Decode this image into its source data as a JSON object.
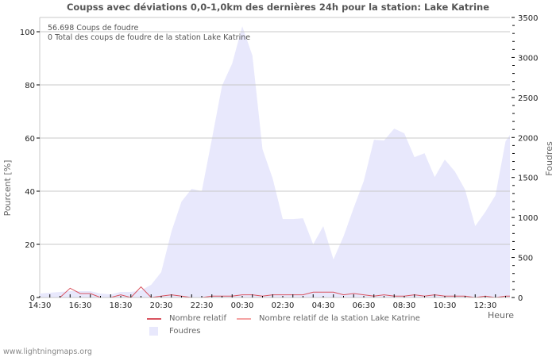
{
  "title": "Coupss avec déviations 0,0-1,0km des dernières 24h pour la station: Lake Katrine",
  "info": {
    "line1": "56.698  Coups de foudre",
    "line2": "0 Total des coups de foudre de la station Lake Katrine"
  },
  "axes": {
    "left_title": "Pourcent   [%]",
    "right_title": "Foudres",
    "x_title": "Heure"
  },
  "legend": {
    "relative": "Nombre relatif",
    "station_relative": "Nombre relatif de la station Lake Katrine",
    "strikes": "Foudres"
  },
  "colors": {
    "area": "#e8e8fc",
    "relative_line": "#d9535f",
    "station_line": "#f5a3a3",
    "grid": "#c8c8c8"
  },
  "footer": "www.lightningmaps.org",
  "chart_data": {
    "type": "area",
    "title": "Coupss avec déviations 0,0-1,0km des dernières 24h pour la station: Lake Katrine",
    "xlabel": "Heure",
    "ylabel_left": "Pourcent   [%]",
    "ylabel_right": "Foudres",
    "x_ticks": [
      "14:30",
      "16:30",
      "18:30",
      "20:30",
      "22:30",
      "00:30",
      "02:30",
      "04:30",
      "06:30",
      "08:30",
      "10:30",
      "12:30"
    ],
    "y_left_ticks": [
      0,
      20,
      40,
      60,
      80,
      100
    ],
    "y_right_ticks": [
      0,
      500,
      1000,
      1500,
      2000,
      2500,
      3000,
      3500
    ],
    "ylim_left": [
      0,
      105
    ],
    "ylim_right": [
      0,
      3500
    ],
    "grid": true,
    "legend_position": "bottom",
    "x_times": [
      "14:30",
      "15:00",
      "15:30",
      "16:00",
      "16:30",
      "17:00",
      "17:30",
      "18:00",
      "18:30",
      "19:00",
      "19:30",
      "20:00",
      "20:30",
      "21:00",
      "21:30",
      "22:00",
      "22:30",
      "23:00",
      "23:30",
      "00:00",
      "00:30",
      "01:00",
      "01:30",
      "02:00",
      "02:30",
      "03:00",
      "03:30",
      "04:00",
      "04:30",
      "05:00",
      "05:30",
      "06:00",
      "06:30",
      "07:00",
      "07:30",
      "08:00",
      "08:30",
      "09:00",
      "09:30",
      "10:00",
      "10:30",
      "11:00",
      "11:30",
      "12:00",
      "12:30",
      "13:00",
      "13:30",
      "13:45"
    ],
    "series": [
      {
        "name": "Foudres",
        "axis": "right",
        "type": "area",
        "values": [
          50,
          59,
          69,
          79,
          79,
          79,
          50,
          40,
          69,
          69,
          89,
          159,
          317,
          823,
          1199,
          1358,
          1328,
          1982,
          2646,
          2924,
          3390,
          3023,
          1853,
          1487,
          981,
          981,
          991,
          664,
          892,
          476,
          763,
          1120,
          1457,
          1972,
          1962,
          2111,
          2052,
          1754,
          1804,
          1506,
          1724,
          1575,
          1348,
          892,
          1070,
          1278,
          1952,
          2032
        ]
      },
      {
        "name": "Nombre relatif",
        "axis": "left",
        "type": "line",
        "values": [
          0,
          0,
          0,
          3.5,
          1.5,
          1.5,
          0,
          0,
          1.0,
          0,
          4.0,
          0,
          0.5,
          1.0,
          0.5,
          0,
          0,
          0.5,
          0.5,
          0.5,
          1.0,
          1.0,
          0.5,
          1.0,
          1.0,
          1.0,
          1.0,
          2.0,
          2.0,
          2.0,
          1.0,
          1.5,
          1.0,
          0.5,
          1.0,
          0.5,
          0.5,
          1.0,
          0.5,
          1.0,
          0.5,
          0.5,
          0.5,
          0,
          0.5,
          0,
          0.5,
          0.5
        ]
      },
      {
        "name": "Nombre relatif de la station Lake Katrine",
        "axis": "left",
        "type": "line",
        "values": []
      }
    ]
  }
}
